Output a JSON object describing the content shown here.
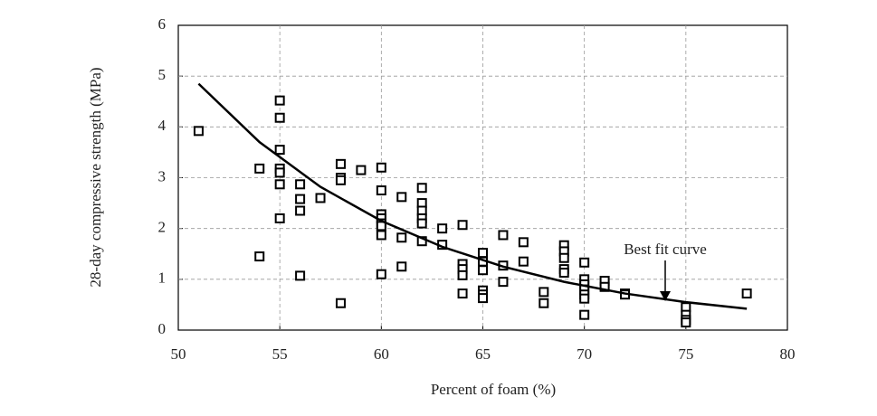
{
  "chart_data": {
    "type": "scatter",
    "xlabel": "Percent of foam (%)",
    "ylabel": "28-day compressive strength (MPa)",
    "annotation": "Best fit curve",
    "xlim": [
      50,
      80
    ],
    "xticks": [
      50,
      55,
      60,
      65,
      70,
      75,
      80
    ],
    "ylim": [
      0,
      6
    ],
    "yticks": [
      0,
      1,
      2,
      3,
      4,
      5,
      6
    ],
    "grid": true,
    "series": [
      {
        "type": "scatter",
        "color": "#000000",
        "x": [
          51,
          54,
          54,
          55,
          55,
          55,
          55,
          55,
          55,
          55,
          56,
          56,
          56,
          56,
          57,
          58,
          58,
          58,
          58,
          59,
          60,
          60,
          60,
          60,
          60,
          60,
          60,
          60,
          61,
          61,
          61,
          62,
          62,
          62,
          62,
          62,
          62,
          63,
          63,
          64,
          64,
          64,
          64,
          64,
          65,
          65,
          65,
          65,
          65,
          65,
          66,
          66,
          66,
          67,
          67,
          68,
          68,
          69,
          69,
          69,
          69,
          69,
          70,
          70,
          70,
          70,
          70,
          70,
          70,
          71,
          71,
          72,
          72,
          75,
          75,
          75,
          75,
          78
        ],
        "values": [
          3.92,
          3.18,
          1.45,
          4.52,
          4.18,
          3.55,
          3.18,
          3.1,
          2.87,
          2.2,
          2.87,
          2.58,
          2.35,
          1.07,
          2.6,
          3.27,
          3.0,
          2.95,
          0.53,
          3.15,
          3.2,
          2.75,
          2.28,
          2.2,
          2.1,
          2.05,
          1.87,
          1.1,
          2.62,
          1.82,
          1.25,
          2.8,
          2.5,
          2.35,
          2.2,
          2.1,
          1.75,
          2.0,
          1.68,
          2.07,
          1.3,
          1.2,
          1.08,
          0.72,
          1.52,
          1.35,
          1.18,
          0.78,
          0.7,
          0.63,
          1.87,
          1.27,
          0.95,
          1.73,
          1.35,
          0.75,
          0.53,
          1.67,
          1.55,
          1.42,
          1.2,
          1.13,
          1.33,
          1.0,
          0.9,
          0.8,
          0.7,
          0.62,
          0.3,
          0.97,
          0.85,
          0.72,
          0.7,
          0.45,
          0.3,
          0.2,
          0.15,
          0.72
        ]
      },
      {
        "type": "line",
        "color": "#000000",
        "x": [
          51,
          54,
          57,
          60,
          63,
          66,
          69,
          72,
          75,
          78
        ],
        "values": [
          4.85,
          3.7,
          2.82,
          2.15,
          1.64,
          1.25,
          0.95,
          0.72,
          0.55,
          0.42
        ]
      }
    ]
  }
}
